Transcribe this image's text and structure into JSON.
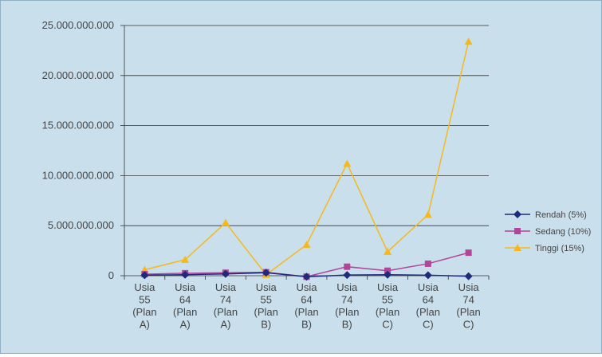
{
  "chart_data": {
    "type": "line",
    "title": "",
    "xlabel": "",
    "ylabel": "",
    "ylim": [
      0,
      25000000000
    ],
    "y_ticks": [
      0,
      5000000000,
      10000000000,
      15000000000,
      20000000000,
      25000000000
    ],
    "y_tick_labels": [
      "0",
      "5.000.000.000",
      "10.000.000.000",
      "15.000.000.000",
      "20.000.000.000",
      "25.000.000.000"
    ],
    "categories": [
      [
        "Usia",
        "55",
        "(Plan",
        "A)"
      ],
      [
        "Usia",
        "64",
        "(Plan",
        "A)"
      ],
      [
        "Usia",
        "74",
        "(Plan",
        "A)"
      ],
      [
        "Usia",
        "55",
        "(Plan",
        "B)"
      ],
      [
        "Usia",
        "64",
        "(Plan",
        "B)"
      ],
      [
        "Usia",
        "74",
        "(Plan",
        "B)"
      ],
      [
        "Usia",
        "55",
        "(Plan",
        "C)"
      ],
      [
        "Usia",
        "64",
        "(Plan",
        "C)"
      ],
      [
        "Usia",
        "74",
        "(Plan",
        "C)"
      ]
    ],
    "grid": true,
    "legend_position": "right",
    "series": [
      {
        "name": "Rendah (5%)",
        "color": "#1f2a7a",
        "marker": "diamond",
        "values": [
          50000000,
          100000000,
          180000000,
          300000000,
          -100000000,
          70000000,
          100000000,
          50000000,
          -50000000
        ]
      },
      {
        "name": "Sedang (10%)",
        "color": "#b0459a",
        "marker": "square",
        "values": [
          150000000,
          250000000,
          300000000,
          350000000,
          -100000000,
          900000000,
          500000000,
          1200000000,
          2300000000
        ]
      },
      {
        "name": "Tinggi (15%)",
        "color": "#f5b820",
        "marker": "triangle",
        "values": [
          600000000,
          1600000000,
          5300000000,
          100000000,
          3100000000,
          11200000000,
          2400000000,
          6100000000,
          23400000000
        ]
      }
    ]
  }
}
